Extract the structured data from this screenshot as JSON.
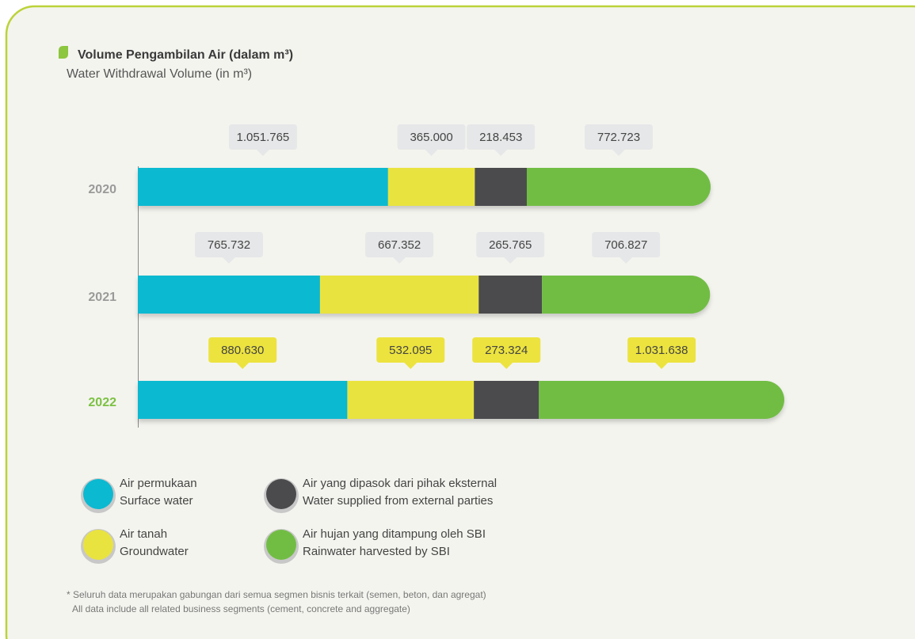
{
  "chart_data": {
    "type": "stacked_barh",
    "title": "Volume Pengambilan Air (dalam m³)",
    "subtitle": "Water Withdrawal Volume (in m³)",
    "categories": [
      "2020",
      "2021",
      "2022"
    ],
    "highlight": "2022",
    "highlight_color": "#7cc143",
    "label_color": "#e6e7e8",
    "highlight_label_color": "#ece33f",
    "series": [
      {
        "name": "Air permukaan",
        "name_en": "Surface water",
        "color": "#0bb9d1",
        "values": [
          1051765,
          765732,
          880630
        ],
        "value_labels": [
          "1.051.765",
          "765.732",
          "880.630"
        ]
      },
      {
        "name": "Air tanah",
        "name_en": "Groundwater",
        "color": "#e9e33f",
        "values": [
          365000,
          667352,
          532095
        ],
        "value_labels": [
          "365.000",
          "667.352",
          "532.095"
        ]
      },
      {
        "name": "Air yang dipasok dari pihak eksternal",
        "name_en": "Water supplied from external parties",
        "color": "#4b4b4d",
        "values": [
          218453,
          265765,
          273324
        ],
        "value_labels": [
          "218.453",
          "265.765",
          "273.324"
        ]
      },
      {
        "name": "Air hujan yang ditampung oleh SBI",
        "name_en": "Rainwater harvested by SBI",
        "color": "#71bd44",
        "values": [
          772723,
          706827,
          1031638
        ],
        "value_labels": [
          "772.723",
          "706.827",
          "1.031.638"
        ]
      }
    ],
    "footnote": [
      "* Seluruh data merupakan gabungan dari semua segmen bisnis terkait (semen, beton, dan agregat)",
      "All data include all related business segments (cement, concrete and aggregate)"
    ]
  }
}
